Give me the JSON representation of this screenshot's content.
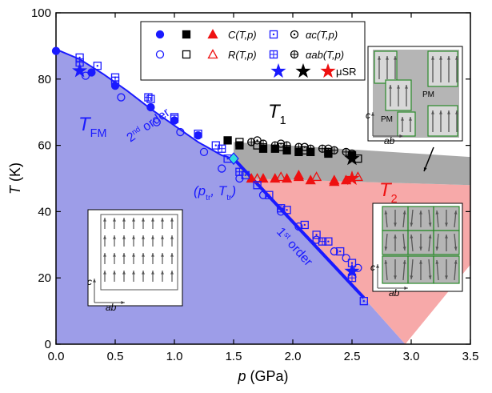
{
  "chart_data": {
    "type": "scatter",
    "xlabel": [
      "p",
      " (GPa)"
    ],
    "ylabel": [
      "T",
      " (K)"
    ],
    "xlim": [
      0,
      3.5
    ],
    "ylim": [
      0,
      100
    ],
    "xticks": [
      {
        "value": 0,
        "label": "0.0"
      },
      {
        "value": 0.5,
        "label": "0.5"
      },
      {
        "value": 1,
        "label": "1.0"
      },
      {
        "value": 1.5,
        "label": "1.5"
      },
      {
        "value": 2,
        "label": "2.0"
      },
      {
        "value": 2.5,
        "label": "2.5"
      },
      {
        "value": 3,
        "label": "3.0"
      },
      {
        "value": 3.5,
        "label": "3.5"
      }
    ],
    "yticks": [
      0,
      20,
      40,
      60,
      80,
      100
    ],
    "regions": [
      {
        "color": "#9d9de8",
        "x": [
          0,
          0,
          0.2,
          0.4,
          0.6,
          0.8,
          1.0,
          1.2,
          1.4,
          1.5,
          2.6,
          2.95
        ],
        "values": [
          0,
          89,
          86,
          81.5,
          76.5,
          71,
          66,
          61,
          57,
          56,
          14,
          0
        ]
      },
      {
        "color": "#f7a9a9",
        "x": [
          1.5,
          1.6,
          3.5,
          3.5,
          2.95,
          2.6
        ],
        "values": [
          56,
          50,
          48,
          24,
          0,
          14
        ]
      },
      {
        "color": "#a9a9a9",
        "x": [
          1.5,
          1.5,
          3.5,
          3.5,
          1.6
        ],
        "values": [
          56,
          61,
          56.5,
          48,
          50
        ]
      }
    ],
    "lines": [
      {
        "color": "#1a1aff",
        "width": 2,
        "x": [
          0,
          0.2,
          0.4,
          0.6,
          0.8,
          1.0,
          1.2,
          1.4,
          1.5
        ],
        "values": [
          89,
          86,
          81.5,
          76.5,
          71,
          66,
          61,
          57,
          56
        ]
      },
      {
        "color": "#1a1aff",
        "width": 4,
        "x": [
          1.5,
          2.6
        ],
        "values": [
          56,
          14
        ]
      }
    ],
    "series": [
      {
        "name": "C(T,p)",
        "groups": [
          {
            "marker": "circle",
            "filled": true,
            "color": "#1a1aff",
            "x": [
              0,
              0.3,
              0.5,
              0.8,
              1.0,
              1.2
            ],
            "values": [
              88.5,
              82,
              78,
              71.5,
              67.5,
              63
            ]
          },
          {
            "marker": "square",
            "filled": true,
            "color": "#000000",
            "x": [
              1.45,
              1.55,
              1.75,
              1.85,
              1.95,
              2.05,
              2.15,
              2.3,
              2.5
            ],
            "values": [
              61.5,
              60,
              59,
              59,
              58.5,
              58,
              58,
              57.5,
              57
            ]
          },
          {
            "marker": "triangle",
            "filled": true,
            "color": "#ee1111",
            "x": [
              1.65,
              1.75,
              1.85,
              1.95,
              2.05,
              2.15,
              2.35,
              2.45
            ],
            "values": [
              50,
              50,
              50,
              50,
              50.5,
              49.5,
              49,
              49.5
            ]
          }
        ]
      },
      {
        "name": "R(T,p)",
        "groups": [
          {
            "marker": "circle",
            "filled": false,
            "color": "#1a1aff",
            "x": [
              0.25,
              0.55,
              0.85,
              1.05,
              1.25,
              1.4,
              1.55,
              1.75,
              1.9,
              2.05,
              2.2,
              2.35,
              2.45,
              2.55
            ],
            "values": [
              81,
              74.5,
              67,
              64,
              58,
              53,
              50,
              45,
              40,
              35.5,
              31.5,
              28,
              26,
              23
            ]
          },
          {
            "marker": "square",
            "filled": false,
            "color": "#000000",
            "x": [
              1.55,
              1.7,
              1.9,
              2.1,
              2.3,
              2.55
            ],
            "values": [
              61,
              60,
              59.5,
              58.5,
              58,
              56
            ]
          },
          {
            "marker": "triangle",
            "filled": false,
            "color": "#ee1111",
            "x": [
              1.7,
              1.9,
              2.05,
              2.2,
              2.35,
              2.55
            ],
            "values": [
              50,
              50.5,
              51,
              50.5,
              49.5,
              50.5
            ]
          }
        ]
      },
      {
        "name": "αc(T,p)",
        "groups": [
          {
            "marker": "square-dot",
            "filled": false,
            "color": "#1a1aff",
            "x": [
              0.2,
              0.35,
              0.5,
              0.8,
              1.0,
              1.2,
              1.35,
              1.45,
              1.6,
              1.7,
              1.8,
              1.95,
              2.1,
              2.2,
              2.3,
              2.4,
              2.5,
              2.6
            ],
            "values": [
              86.5,
              84,
              80.5,
              74,
              68.5,
              63.5,
              60,
              56,
              51,
              48,
              45,
              40.5,
              36,
              33,
              31,
              28,
              24.5,
              13
            ]
          },
          {
            "marker": "circle-dot",
            "filled": false,
            "color": "#000000",
            "x": [
              1.7,
              1.9,
              2.1,
              2.3,
              2.5
            ],
            "values": [
              61.5,
              60.5,
              59.5,
              59,
              57.5
            ]
          }
        ]
      },
      {
        "name": "αab(T,p)",
        "groups": [
          {
            "marker": "square-cross",
            "filled": false,
            "color": "#1a1aff",
            "x": [
              0.2,
              0.5,
              0.78,
              1.0,
              1.4,
              1.55,
              1.9,
              2.25,
              2.5
            ],
            "values": [
              85,
              79.5,
              74.5,
              68,
              59,
              52,
              41,
              31,
              20
            ]
          },
          {
            "marker": "circle-cross",
            "filled": false,
            "color": "#000000",
            "x": [
              1.65,
              1.75,
              1.85,
              1.95,
              2.05,
              2.15,
              2.25,
              2.35,
              2.45
            ],
            "values": [
              61,
              60.5,
              60,
              60,
              59.5,
              59,
              59,
              58.5,
              58
            ]
          }
        ]
      },
      {
        "name": "μSR",
        "groups": [
          {
            "marker": "star",
            "filled": true,
            "color": "#1a1aff",
            "x": [
              0.2,
              2.5
            ],
            "values": [
              82.5,
              22
            ]
          },
          {
            "marker": "star",
            "filled": true,
            "color": "#000000",
            "x": [
              2.5
            ],
            "values": [
              56
            ]
          },
          {
            "marker": "star",
            "filled": true,
            "color": "#ee1111",
            "x": [
              2.5
            ],
            "values": [
              50
            ]
          }
        ]
      }
    ],
    "triple_point": {
      "x": 1.5,
      "value": 56,
      "color": "#33dddd"
    },
    "annotations": [
      {
        "parts": [
          "T",
          "FM"
        ],
        "color": "#1a1aff"
      },
      {
        "parts": [
          "T",
          "1"
        ],
        "color": "#000000"
      },
      {
        "parts": [
          "T",
          "2"
        ],
        "color": "#ee1111"
      },
      {
        "parts": [
          "2",
          "nd",
          " order"
        ],
        "color": "#1a1aff"
      },
      {
        "parts": [
          "1",
          "st",
          " order"
        ],
        "color": "#1a1aff"
      },
      {
        "parts": [
          "(p",
          "tr",
          ", T",
          "tr",
          ")"
        ],
        "color": "#1a1aff"
      }
    ],
    "insets": {
      "axis_c": "c",
      "axis_ab": "ab",
      "pm": "PM"
    }
  }
}
